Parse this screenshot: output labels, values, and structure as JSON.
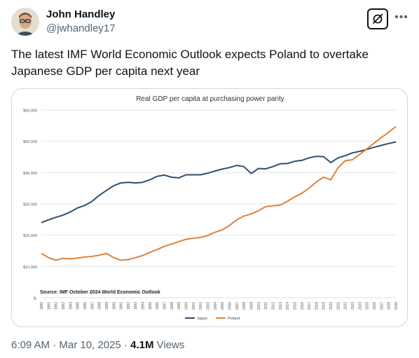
{
  "author": {
    "name": "John Handley",
    "handle": "@jwhandley17"
  },
  "tweet": {
    "text": "The latest IMF World Economic Outlook expects Poland to overtake Japanese GDP per capita next year"
  },
  "meta": {
    "timestamp": "6:09 AM · Mar 10, 2025",
    "separator": "·",
    "views_count": "4.1M",
    "views_label": "Views"
  },
  "icons": {
    "grok": "grok-icon",
    "more": "more-horizontal-icon"
  },
  "chart_data": {
    "type": "line",
    "title": "Real GDP per capita at purchasing power parity",
    "xlabel": "",
    "ylabel": "",
    "source_note": "Source: IMF October 2024 World Economic Outlook",
    "ylim": [
      0,
      60000
    ],
    "y_ticks": [
      "$-",
      "$10,000",
      "$20,000",
      "$30,000",
      "$40,000",
      "$50,000",
      "$60,000"
    ],
    "y_tick_values": [
      0,
      10000,
      20000,
      30000,
      40000,
      50000,
      60000
    ],
    "grid": true,
    "legend_position": "bottom",
    "x": [
      1980,
      1981,
      1982,
      1983,
      1984,
      1985,
      1986,
      1987,
      1988,
      1989,
      1990,
      1991,
      1992,
      1993,
      1994,
      1995,
      1996,
      1997,
      1998,
      1999,
      2000,
      2001,
      2002,
      2003,
      2004,
      2005,
      2006,
      2007,
      2008,
      2009,
      2010,
      2011,
      2012,
      2013,
      2014,
      2015,
      2016,
      2017,
      2018,
      2019,
      2020,
      2021,
      2022,
      2023,
      2024,
      2025,
      2026,
      2027,
      2028,
      2029
    ],
    "series": [
      {
        "name": "Japan",
        "color": "#2f4f6f",
        "values": [
          24000,
          24900,
          25700,
          26400,
          27400,
          28700,
          29500,
          30800,
          32700,
          34300,
          35800,
          36700,
          36900,
          36700,
          36900,
          37700,
          38800,
          39200,
          38500,
          38300,
          39300,
          39300,
          39300,
          39800,
          40500,
          41100,
          41600,
          42300,
          41900,
          39700,
          41300,
          41200,
          41900,
          42800,
          42900,
          43600,
          43900,
          44700,
          45200,
          45100,
          43200,
          44700,
          45400,
          46300,
          46800,
          47400,
          48100,
          48700,
          49300,
          49800
        ],
        "marker": "line"
      },
      {
        "name": "Poland",
        "color": "#e0813a",
        "values": [
          14200,
          12800,
          12000,
          12600,
          12400,
          12700,
          13000,
          13200,
          13600,
          14200,
          12800,
          12000,
          12200,
          12800,
          13500,
          14500,
          15400,
          16400,
          17200,
          17900,
          18700,
          19000,
          19300,
          19900,
          20900,
          21700,
          23100,
          24900,
          26100,
          26800,
          27800,
          29100,
          29400,
          29600,
          30800,
          32200,
          33400,
          35000,
          37000,
          38500,
          37700,
          41500,
          43800,
          44100,
          45800,
          47600,
          49400,
          51200,
          52900,
          54700
        ],
        "marker": "line"
      }
    ]
  }
}
